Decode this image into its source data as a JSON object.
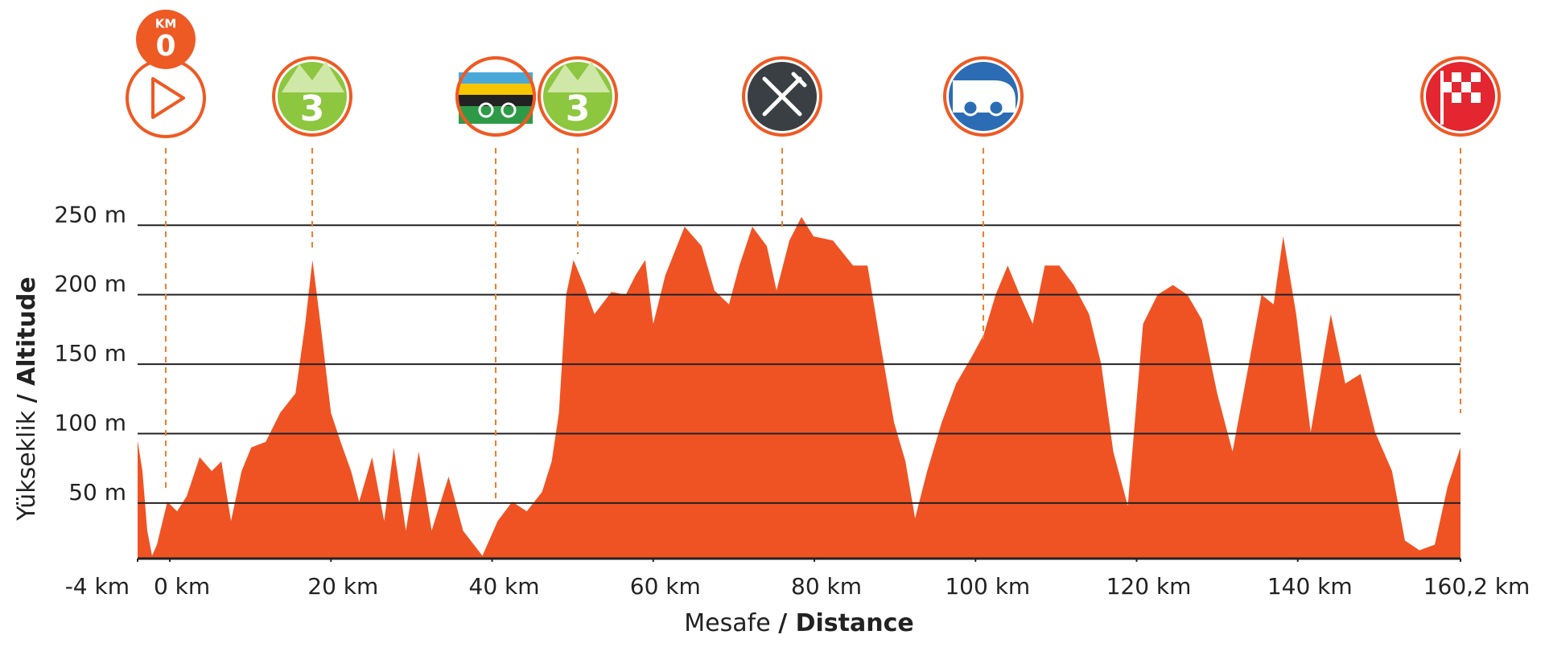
{
  "chart_data": {
    "type": "area",
    "color": "#f05323",
    "y_label": "Yükseklik",
    "y_label_en": "/ Altitude",
    "x_label": "Mesafe",
    "x_label_en": "/ Distance",
    "annotations": [
      "KM",
      "0",
      "3",
      "3"
    ],
    "x": [
      -4,
      -3.4,
      -2.8,
      -2.2,
      -1.6,
      -0.3,
      0.9,
      2.1,
      3.7,
      5.2,
      6.4,
      7.6,
      8.9,
      10.1,
      11.9,
      13.7,
      15.6,
      16.8,
      17.7,
      18.7,
      20,
      21.2,
      22.5,
      23.5,
      25.1,
      26.6,
      27.8,
      29.3,
      30.9,
      32.5,
      34.6,
      36.4,
      38.8,
      40.7,
      42.5,
      44.3,
      46.2,
      47.4,
      48.3,
      49.2,
      50.1,
      51.4,
      52.7,
      54.8,
      56.6,
      57.8,
      59,
      60,
      61.5,
      63.9,
      66,
      67.6,
      69.4,
      70.7,
      72.3,
      74.1,
      75.3,
      76.9,
      78.4,
      79.9,
      82.3,
      84.8,
      86.6,
      88.2,
      89.9,
      91.3,
      92.5,
      94,
      95.8,
      97.6,
      99.4,
      101,
      102.5,
      104,
      105.5,
      107.1,
      108.6,
      110.4,
      112.2,
      114.1,
      115.6,
      117.1,
      118.9,
      120.8,
      122.6,
      124.5,
      126.3,
      128.1,
      130,
      131.9,
      133.7,
      135.5,
      137,
      138.2,
      139.8,
      141.6,
      144.1,
      145.9,
      147.8,
      149.6,
      151.7,
      153.3,
      155.1,
      157,
      158.6,
      160.2
    ],
    "values": [
      95,
      73,
      30,
      12,
      20,
      51,
      44,
      55,
      83,
      73,
      80,
      37,
      73,
      90,
      94,
      115,
      129,
      179,
      225,
      179,
      115,
      94,
      73,
      51,
      83,
      37,
      90,
      30,
      87,
      30,
      69,
      30,
      12,
      37,
      51,
      44,
      58,
      80,
      115,
      200,
      225,
      207,
      186,
      202,
      200,
      214,
      225,
      179,
      214,
      249,
      235,
      203,
      193,
      221,
      249,
      235,
      203,
      239,
      256,
      242,
      239,
      221,
      221,
      165,
      108,
      80,
      39,
      73,
      108,
      136,
      154,
      171,
      200,
      221,
      200,
      179,
      221,
      221,
      207,
      186,
      150,
      87,
      48,
      179,
      200,
      207,
      200,
      182,
      129,
      87,
      143,
      200,
      193,
      242,
      186,
      101,
      186,
      136,
      143,
      101,
      73,
      23,
      16,
      20,
      62,
      90
    ],
    "xlim": [
      -4,
      160.2
    ],
    "xticks": [
      {
        "value": -4,
        "label": "-4 km"
      },
      {
        "value": 0,
        "label": "0 km"
      },
      {
        "value": 20,
        "label": "20 km"
      },
      {
        "value": 40,
        "label": "40 km"
      },
      {
        "value": 60,
        "label": "60 km"
      },
      {
        "value": 80,
        "label": "80 km"
      },
      {
        "value": 100,
        "label": "100 km"
      },
      {
        "value": 120,
        "label": "120 km"
      },
      {
        "value": 140,
        "label": "140 km"
      },
      {
        "value": 160.2,
        "label": "160,2 km"
      }
    ],
    "ylim": [
      10,
      260
    ],
    "yticks": [
      {
        "value": 50,
        "label": "50 m"
      },
      {
        "value": 100,
        "label": "100 m"
      },
      {
        "value": 150,
        "label": "150 m"
      },
      {
        "value": 200,
        "label": "200 m"
      },
      {
        "value": 250,
        "label": "250 m"
      }
    ],
    "grid": true
  }
}
